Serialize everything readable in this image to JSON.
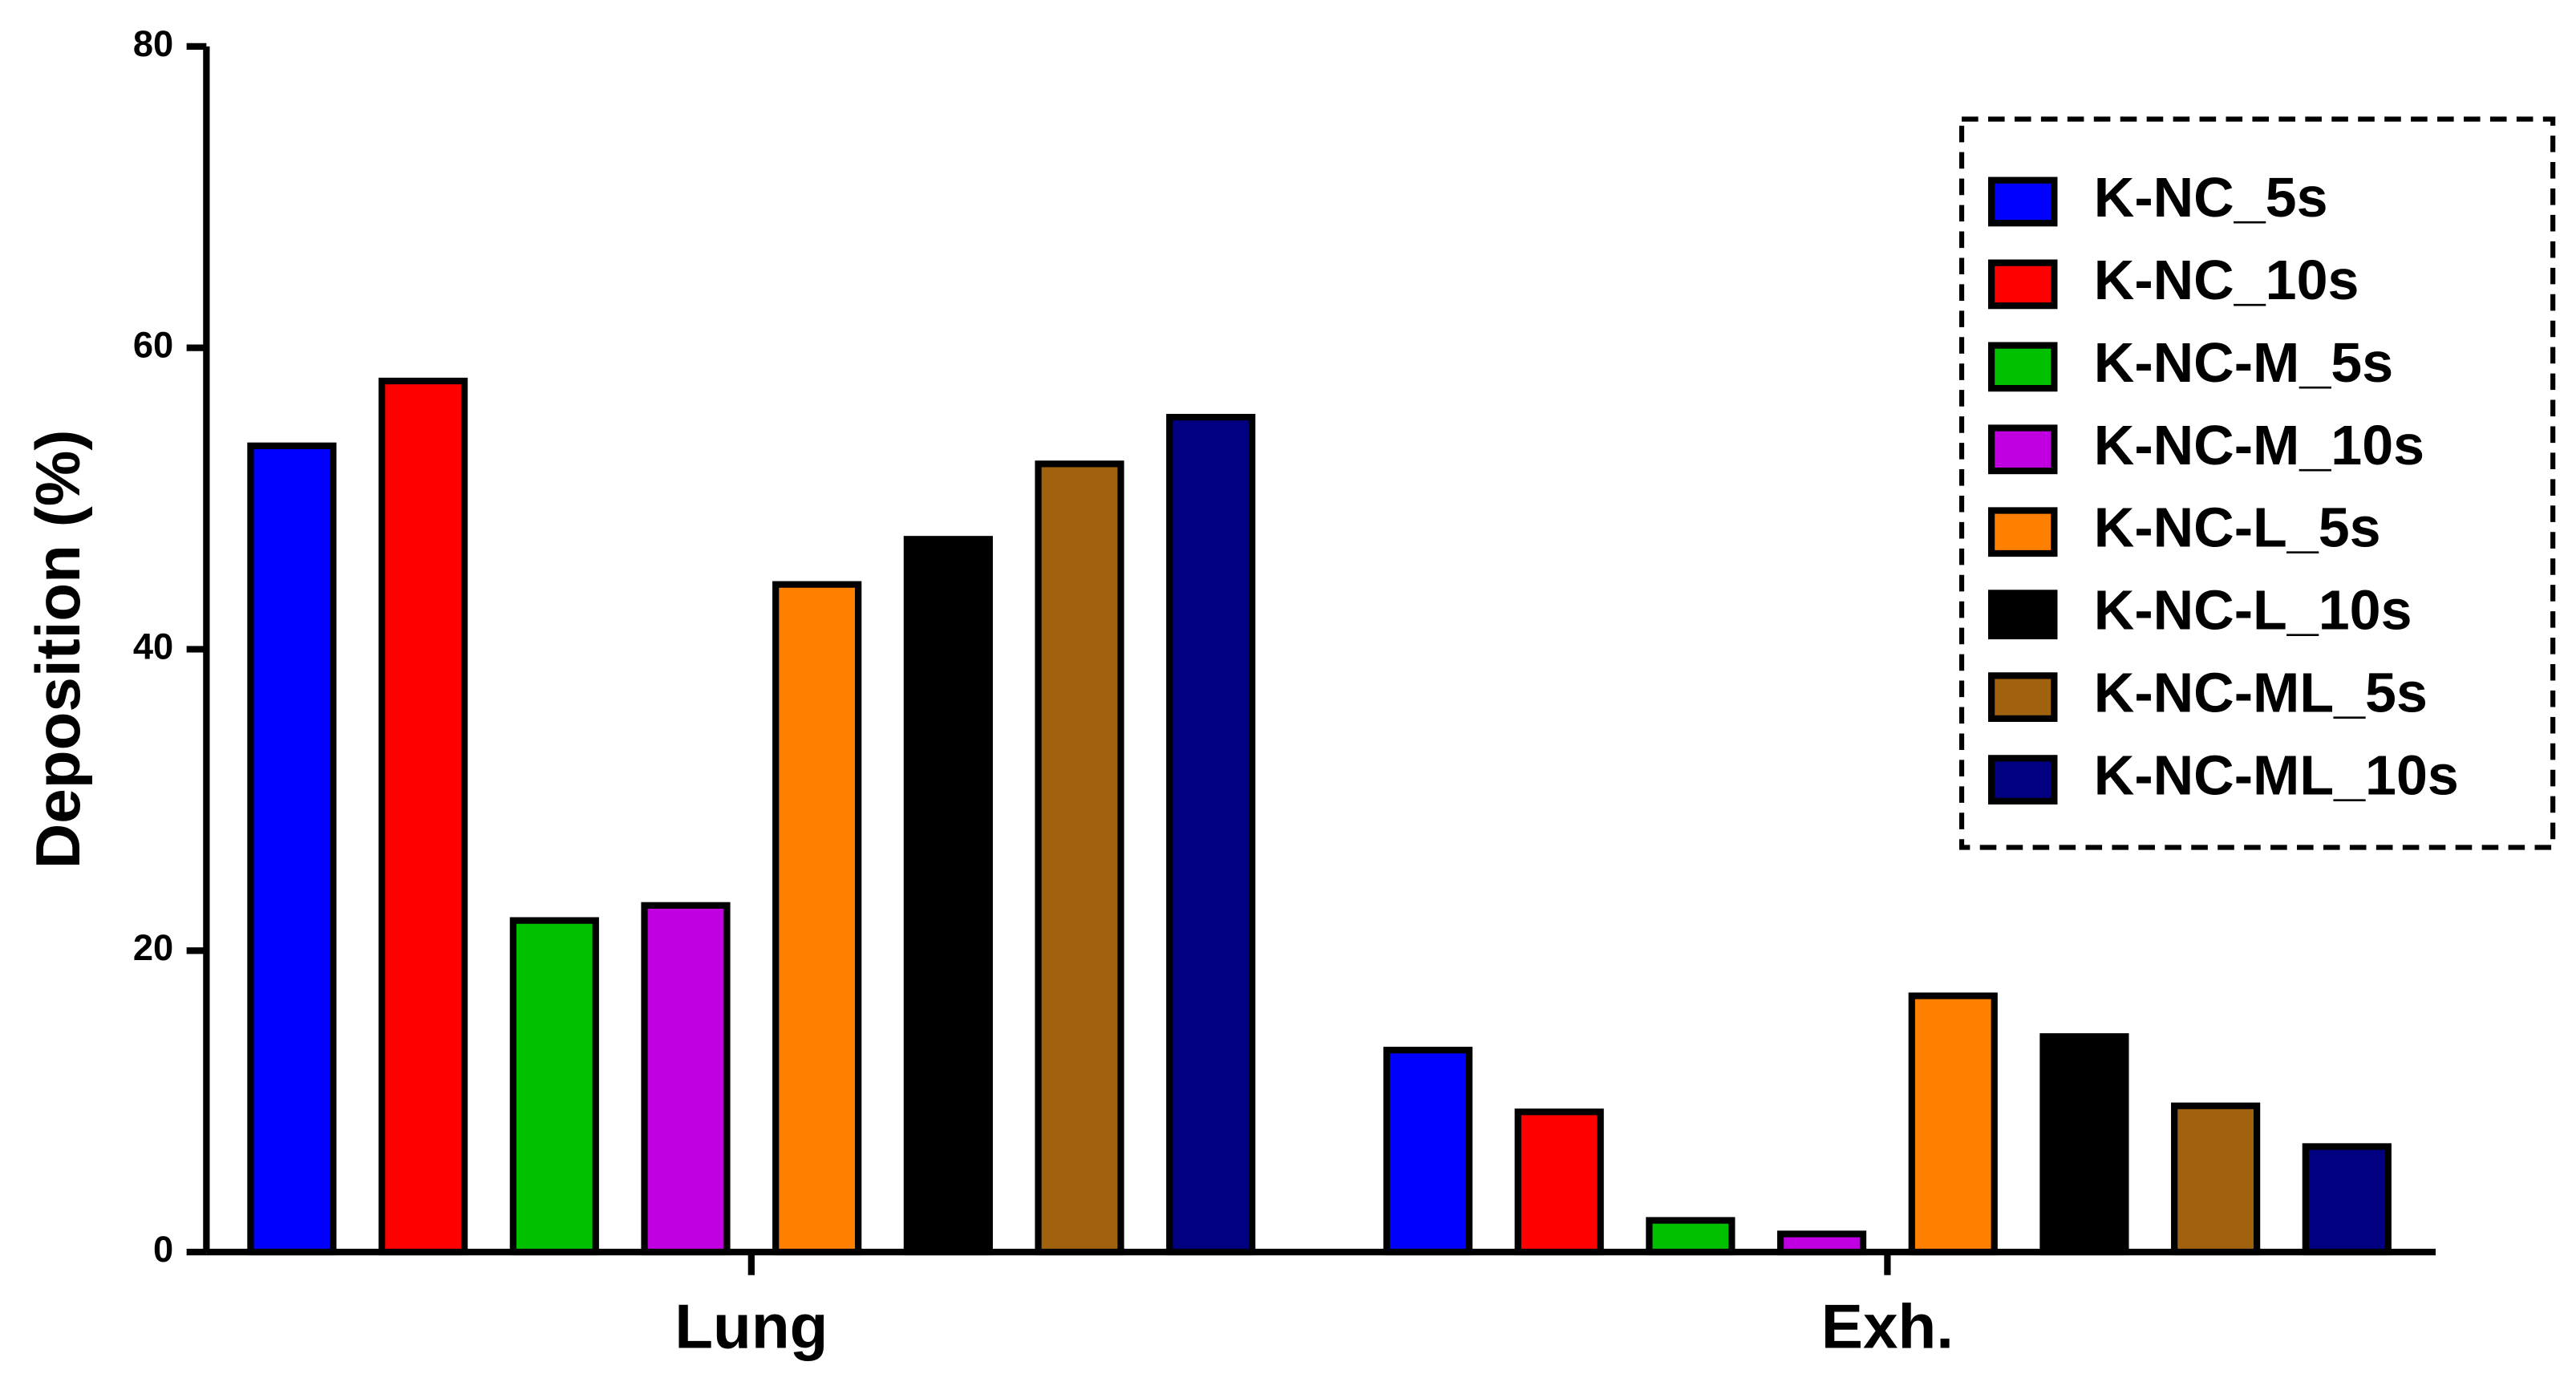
{
  "chart_data": {
    "type": "bar",
    "y_label": "Deposition (%)",
    "categories": [
      "Lung",
      "Exh."
    ],
    "series": [
      {
        "name": "K-NC_5s",
        "color": "#0000ff",
        "values": [
          53.5,
          13.4
        ]
      },
      {
        "name": "K-NC_10s",
        "color": "#ff0000",
        "values": [
          57.8,
          9.3
        ]
      },
      {
        "name": "K-NC-M_5s",
        "color": "#00c000",
        "values": [
          22,
          2.1
        ]
      },
      {
        "name": "K-NC-M_10s",
        "color": "#c000e0",
        "values": [
          23,
          1.2
        ]
      },
      {
        "name": "K-NC-L_5s",
        "color": "#ff8000",
        "values": [
          44.3,
          17
        ]
      },
      {
        "name": "K-NC-L_10s",
        "color": "#000000",
        "values": [
          47.3,
          14.3
        ]
      },
      {
        "name": "K-NC-ML_5s",
        "color": "#a0620f",
        "values": [
          52.3,
          9.7
        ]
      },
      {
        "name": "K-NC-ML_10s",
        "color": "#000080",
        "values": [
          55.4,
          7
        ]
      }
    ],
    "ylim": [
      0,
      80
    ],
    "yticks": [
      0,
      20,
      40,
      60,
      80
    ],
    "legend": "upper right"
  }
}
